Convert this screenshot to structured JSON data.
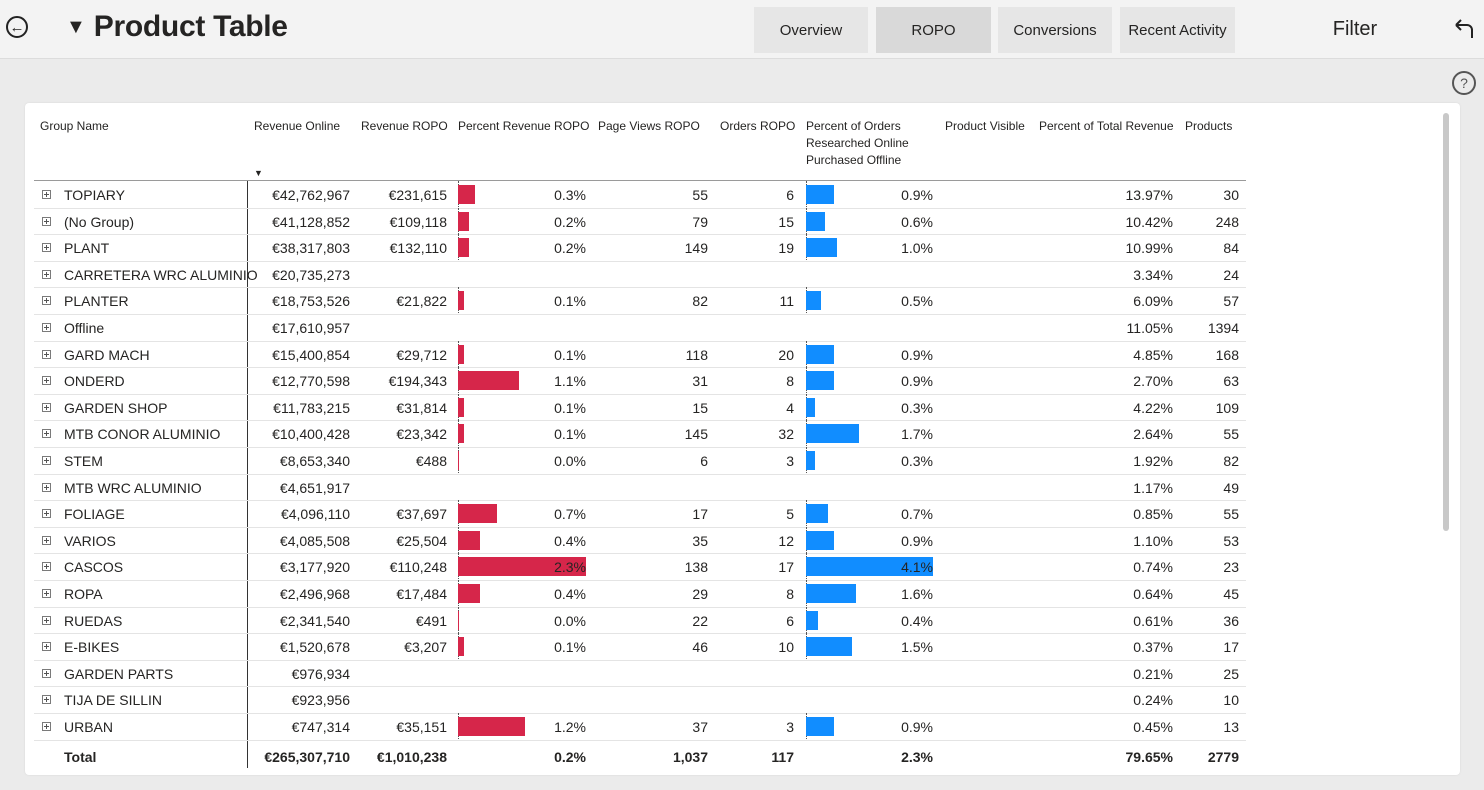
{
  "header": {
    "title": "Product Table",
    "tabs": [
      {
        "label": "Overview",
        "active": false
      },
      {
        "label": "ROPO",
        "active": true
      },
      {
        "label": "Conversions",
        "active": false
      },
      {
        "label": "Recent Activity",
        "active": false
      }
    ],
    "filter_label": "Filter"
  },
  "colors": {
    "ropo_bar": "#d6264a",
    "orders_bar": "#118dff"
  },
  "table": {
    "columns": {
      "group_name": "Group Name",
      "revenue_online": "Revenue Online",
      "revenue_ropo": "Revenue ROPO",
      "percent_revenue_ropo": "Percent Revenue ROPO",
      "page_views_ropo": "Page Views ROPO",
      "orders_ropo": "Orders ROPO",
      "percent_orders": [
        "Percent of Orders",
        "Researched Online",
        "Purchased Offline"
      ],
      "product_visible": "Product Visible",
      "percent_total_revenue": "Percent of Total Revenue",
      "products": "Products"
    },
    "rows": [
      {
        "name": "TOPIARY",
        "revenue_online": "€42,762,967",
        "revenue_ropo": "€231,615",
        "pct_rev_ropo": "0.3%",
        "pct_rev_ropo_value": 0.3,
        "page_views": "55",
        "orders": "6",
        "pct_orders": "0.9%",
        "pct_orders_value": 0.9,
        "pct_total": "13.97%",
        "products": "30"
      },
      {
        "name": "(No Group)",
        "revenue_online": "€41,128,852",
        "revenue_ropo": "€109,118",
        "pct_rev_ropo": "0.2%",
        "pct_rev_ropo_value": 0.2,
        "page_views": "79",
        "orders": "15",
        "pct_orders": "0.6%",
        "pct_orders_value": 0.6,
        "pct_total": "10.42%",
        "products": "248"
      },
      {
        "name": "PLANT",
        "revenue_online": "€38,317,803",
        "revenue_ropo": "€132,110",
        "pct_rev_ropo": "0.2%",
        "pct_rev_ropo_value": 0.2,
        "page_views": "149",
        "orders": "19",
        "pct_orders": "1.0%",
        "pct_orders_value": 1.0,
        "pct_total": "10.99%",
        "products": "84"
      },
      {
        "name": "CARRETERA WRC ALUMINIO",
        "revenue_online": "€20,735,273",
        "revenue_ropo": "",
        "pct_rev_ropo": "",
        "pct_rev_ropo_value": null,
        "page_views": "",
        "orders": "",
        "pct_orders": "",
        "pct_orders_value": null,
        "pct_total": "3.34%",
        "products": "24"
      },
      {
        "name": "PLANTER",
        "revenue_online": "€18,753,526",
        "revenue_ropo": "€21,822",
        "pct_rev_ropo": "0.1%",
        "pct_rev_ropo_value": 0.1,
        "page_views": "82",
        "orders": "11",
        "pct_orders": "0.5%",
        "pct_orders_value": 0.5,
        "pct_total": "6.09%",
        "products": "57"
      },
      {
        "name": "Offline",
        "revenue_online": "€17,610,957",
        "revenue_ropo": "",
        "pct_rev_ropo": "",
        "pct_rev_ropo_value": null,
        "page_views": "",
        "orders": "",
        "pct_orders": "",
        "pct_orders_value": null,
        "pct_total": "11.05%",
        "products": "1394"
      },
      {
        "name": "GARD MACH",
        "revenue_online": "€15,400,854",
        "revenue_ropo": "€29,712",
        "pct_rev_ropo": "0.1%",
        "pct_rev_ropo_value": 0.1,
        "page_views": "118",
        "orders": "20",
        "pct_orders": "0.9%",
        "pct_orders_value": 0.9,
        "pct_total": "4.85%",
        "products": "168"
      },
      {
        "name": "ONDERD",
        "revenue_online": "€12,770,598",
        "revenue_ropo": "€194,343",
        "pct_rev_ropo": "1.1%",
        "pct_rev_ropo_value": 1.1,
        "page_views": "31",
        "orders": "8",
        "pct_orders": "0.9%",
        "pct_orders_value": 0.9,
        "pct_total": "2.70%",
        "products": "63"
      },
      {
        "name": "GARDEN SHOP",
        "revenue_online": "€11,783,215",
        "revenue_ropo": "€31,814",
        "pct_rev_ropo": "0.1%",
        "pct_rev_ropo_value": 0.1,
        "page_views": "15",
        "orders": "4",
        "pct_orders": "0.3%",
        "pct_orders_value": 0.3,
        "pct_total": "4.22%",
        "products": "109"
      },
      {
        "name": "MTB CONOR ALUMINIO",
        "revenue_online": "€10,400,428",
        "revenue_ropo": "€23,342",
        "pct_rev_ropo": "0.1%",
        "pct_rev_ropo_value": 0.1,
        "page_views": "145",
        "orders": "32",
        "pct_orders": "1.7%",
        "pct_orders_value": 1.7,
        "pct_total": "2.64%",
        "products": "55"
      },
      {
        "name": "STEM",
        "revenue_online": "€8,653,340",
        "revenue_ropo": "€488",
        "pct_rev_ropo": "0.0%",
        "pct_rev_ropo_value": 0.0,
        "page_views": "6",
        "orders": "3",
        "pct_orders": "0.3%",
        "pct_orders_value": 0.3,
        "pct_total": "1.92%",
        "products": "82"
      },
      {
        "name": "MTB WRC ALUMINIO",
        "revenue_online": "€4,651,917",
        "revenue_ropo": "",
        "pct_rev_ropo": "",
        "pct_rev_ropo_value": null,
        "page_views": "",
        "orders": "",
        "pct_orders": "",
        "pct_orders_value": null,
        "pct_total": "1.17%",
        "products": "49"
      },
      {
        "name": "FOLIAGE",
        "revenue_online": "€4,096,110",
        "revenue_ropo": "€37,697",
        "pct_rev_ropo": "0.7%",
        "pct_rev_ropo_value": 0.7,
        "page_views": "17",
        "orders": "5",
        "pct_orders": "0.7%",
        "pct_orders_value": 0.7,
        "pct_total": "0.85%",
        "products": "55"
      },
      {
        "name": "VARIOS",
        "revenue_online": "€4,085,508",
        "revenue_ropo": "€25,504",
        "pct_rev_ropo": "0.4%",
        "pct_rev_ropo_value": 0.4,
        "page_views": "35",
        "orders": "12",
        "pct_orders": "0.9%",
        "pct_orders_value": 0.9,
        "pct_total": "1.10%",
        "products": "53"
      },
      {
        "name": "CASCOS",
        "revenue_online": "€3,177,920",
        "revenue_ropo": "€110,248",
        "pct_rev_ropo": "2.3%",
        "pct_rev_ropo_value": 2.3,
        "page_views": "138",
        "orders": "17",
        "pct_orders": "4.1%",
        "pct_orders_value": 4.1,
        "pct_total": "0.74%",
        "products": "23"
      },
      {
        "name": "ROPA",
        "revenue_online": "€2,496,968",
        "revenue_ropo": "€17,484",
        "pct_rev_ropo": "0.4%",
        "pct_rev_ropo_value": 0.4,
        "page_views": "29",
        "orders": "8",
        "pct_orders": "1.6%",
        "pct_orders_value": 1.6,
        "pct_total": "0.64%",
        "products": "45"
      },
      {
        "name": "RUEDAS",
        "revenue_online": "€2,341,540",
        "revenue_ropo": "€491",
        "pct_rev_ropo": "0.0%",
        "pct_rev_ropo_value": 0.0,
        "page_views": "22",
        "orders": "6",
        "pct_orders": "0.4%",
        "pct_orders_value": 0.4,
        "pct_total": "0.61%",
        "products": "36"
      },
      {
        "name": "E-BIKES",
        "revenue_online": "€1,520,678",
        "revenue_ropo": "€3,207",
        "pct_rev_ropo": "0.1%",
        "pct_rev_ropo_value": 0.1,
        "page_views": "46",
        "orders": "10",
        "pct_orders": "1.5%",
        "pct_orders_value": 1.5,
        "pct_total": "0.37%",
        "products": "17"
      },
      {
        "name": "GARDEN PARTS",
        "revenue_online": "€976,934",
        "revenue_ropo": "",
        "pct_rev_ropo": "",
        "pct_rev_ropo_value": null,
        "page_views": "",
        "orders": "",
        "pct_orders": "",
        "pct_orders_value": null,
        "pct_total": "0.21%",
        "products": "25"
      },
      {
        "name": "TIJA DE SILLIN",
        "revenue_online": "€923,956",
        "revenue_ropo": "",
        "pct_rev_ropo": "",
        "pct_rev_ropo_value": null,
        "page_views": "",
        "orders": "",
        "pct_orders": "",
        "pct_orders_value": null,
        "pct_total": "0.24%",
        "products": "10"
      },
      {
        "name": "URBAN",
        "revenue_online": "€747,314",
        "revenue_ropo": "€35,151",
        "pct_rev_ropo": "1.2%",
        "pct_rev_ropo_value": 1.2,
        "page_views": "37",
        "orders": "3",
        "pct_orders": "0.9%",
        "pct_orders_value": 0.9,
        "pct_total": "0.45%",
        "products": "13"
      }
    ],
    "total": {
      "label": "Total",
      "revenue_online": "€265,307,710",
      "revenue_ropo": "€1,010,238",
      "pct_rev_ropo": "0.2%",
      "page_views": "1,037",
      "orders": "117",
      "pct_orders": "2.3%",
      "pct_total": "79.65%",
      "products": "2779"
    }
  }
}
